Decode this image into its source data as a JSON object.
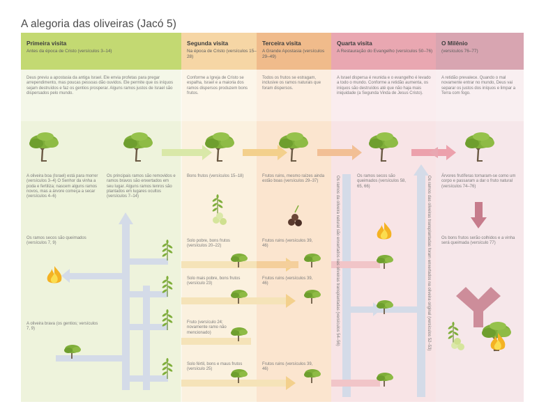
{
  "title": "A alegoria das oliveiras (Jacó 5)",
  "columns": [
    {
      "name": "Primeira visita",
      "subtitle": "Antes da época de Cristo (versículos 3–14)"
    },
    {
      "name": "Segunda visita",
      "subtitle": "Na época de Cristo (versículos 15–28)"
    },
    {
      "name": "Terceira visita",
      "subtitle": "A Grande Apostasia (versículos 29–49)"
    },
    {
      "name": "Quarta visita",
      "subtitle": "A Restauração do Evangelho (versículos 50–76)"
    },
    {
      "name": "O Milênio",
      "subtitle": "(versículos 76–77)"
    }
  ],
  "intro": {
    "c1": "Deus previu a apostasia da antiga Israel. Ele envia profetas para pregar arrependimento, mas poucas pessoas dão ouvidos. Ele permite que os iníquos sejam destruídos e faz os gentios prosperar. Alguns ramos justos de Israel são dispersados pelo mundo.",
    "c2": "Conforme a Igreja de Cristo se espalha, Israel e a maioria dos ramos dispersos produzem bons frutos.",
    "c3": "Todos os frutos se estragam, inclusive os ramos naturais que foram dispersos.",
    "c4": "A Israel dispersa é reunida e o evangelho é levado a todo o mundo. Conforme a retidão aumenta, os iníquos são destruídos até que não haja mais iniquidade (a Segunda Vinda de Jesus Cristo).",
    "c5": "A retidão prevalece. Quando o mal novamente entrar no mundo, Deus vai separar os justos dos iníquos e limpar a Terra com fogo."
  },
  "notes": {
    "c1_tree1": "A oliveira boa (Israel) está para morrer (versículos 3–4) O Senhor da vinha a poda e fertiliza; nascem alguns ramos novos, mas a árvore começa a secar (versículos 4–6)",
    "c1_tree2": "Os principais ramos são removidos e ramos bravos são enxertados em seu lugar. Alguns ramos tenros são plantados em lugares ocultos (versículos 7–14)",
    "c1_burn": "Os ramos secos são queimados (versículos 7, 9)",
    "c1_wild": "A oliveira brava (os gentios; versículos 7, 9)",
    "c2_top": "Bons frutos (versículos 15–18)",
    "c2_r1": "Solo pobre, bons frutos (versículos 20–22)",
    "c2_r2": "Solo mais pobre, bons frutos (versículo 23)",
    "c2_r3": "Fruto (versículo 24; novamente ramo não mencionado)",
    "c2_r4": "Solo fértil, bons e maus frutos (versículo 25)",
    "c3_top": "Frutos ruins, mesmo raízes ainda estão boas (versículos 29–37)",
    "c3_r1": "Frutos ruins (versículos 39, 46)",
    "c3_r2": "Frutos ruins (versículos 39, 46)",
    "c3_r4": "Frutos ruins (versículos 39, 46)",
    "c4_burn": "Os ramos secos são queimados (versículos 58, 65, 66)",
    "c4_rot1": "Os ramos da oliveira natural são enxertados nas oliveiras transplantadas (versículos 54–56)",
    "c4_rot2": "Os ramos das oliveiras transplantadas foram enxertados na oliveira original (versículos 52–53)",
    "c5_top": "Árvores frutíferas tornaram-se como um corpo e passaram a dar o fruto natural (versículos 74–76)",
    "c5_bottom": "Os bons frutos serão colhidos e a vinha será queimada (versículo 77)"
  },
  "colors": {
    "green_header": "#c3d972",
    "peach_header": "#f6d6a5",
    "orange_header": "#f0bb8b",
    "pink_header": "#e9a7b1",
    "mauve_header": "#d8a5b1"
  }
}
